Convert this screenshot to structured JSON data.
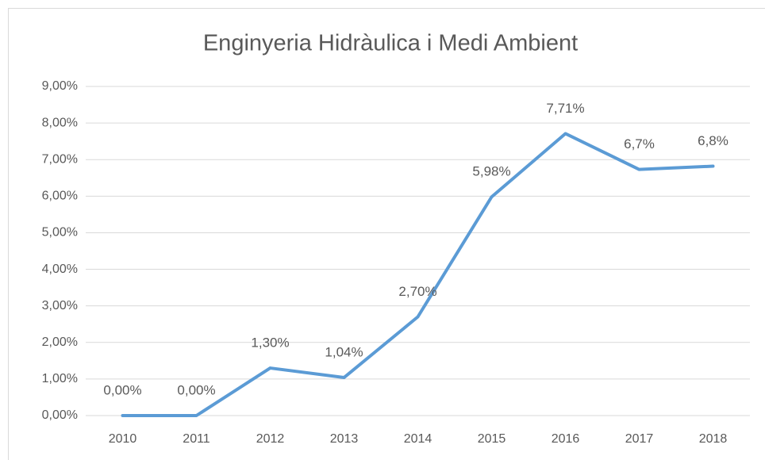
{
  "chart_data": {
    "type": "line",
    "title": "Enginyeria Hidràulica i Medi Ambient",
    "categories": [
      "2010",
      "2011",
      "2012",
      "2013",
      "2014",
      "2015",
      "2016",
      "2017",
      "2018"
    ],
    "values": [
      0,
      0,
      1.3,
      1.04,
      2.7,
      5.98,
      7.71,
      6.73,
      6.82
    ],
    "value_labels": [
      "0,00%",
      "0,00%",
      "1,30%",
      "1,04%",
      "2,70%",
      "5,98%",
      "7,71%",
      "6,7%",
      "6,8%"
    ],
    "color": "#5b9bd5",
    "ylim": [
      0,
      9
    ],
    "yticks": [
      {
        "value": 0,
        "label": "0,00%"
      },
      {
        "value": 1,
        "label": "1,00%"
      },
      {
        "value": 2,
        "label": "2,00%"
      },
      {
        "value": 3,
        "label": "3,00%"
      },
      {
        "value": 4,
        "label": "4,00%"
      },
      {
        "value": 5,
        "label": "5,00%"
      },
      {
        "value": 6,
        "label": "6,00%"
      },
      {
        "value": 7,
        "label": "7,00%"
      },
      {
        "value": 8,
        "label": "8,00%"
      },
      {
        "value": 9,
        "label": "9,00%"
      }
    ],
    "grid": true
  }
}
